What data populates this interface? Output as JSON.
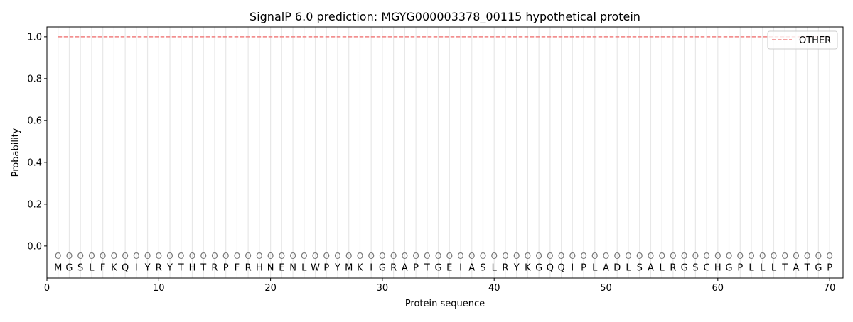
{
  "chart_data": {
    "type": "line",
    "title": "SignalP 6.0 prediction: MGYG000003378_00115 hypothetical protein",
    "xlabel": "Protein sequence",
    "ylabel": "Probability",
    "xlim": [
      0,
      71.2
    ],
    "ylim": [
      -0.153,
      1.047
    ],
    "xticks": [
      0,
      10,
      20,
      30,
      40,
      50,
      60,
      70
    ],
    "yticks": [
      0.0,
      0.2,
      0.4,
      0.6,
      0.8,
      1.0
    ],
    "ytick_labels": [
      "0.0",
      "0.2",
      "0.4",
      "0.6",
      "0.8",
      "1.0"
    ],
    "grid": "vertical lines at each residue",
    "legend_placement": "top-right",
    "sequence": "MGSLFKQIYRYTHTRPFRHNENLWPYMKIGRAPTGEIASLRYKGQQIPLADLSALRGSCHGPLLLTATGP",
    "region_label": "O",
    "series": [
      {
        "name": "OTHER",
        "color": "#f08080",
        "style": "dashed",
        "x_range": [
          1,
          70
        ],
        "value": 1.0
      }
    ]
  }
}
